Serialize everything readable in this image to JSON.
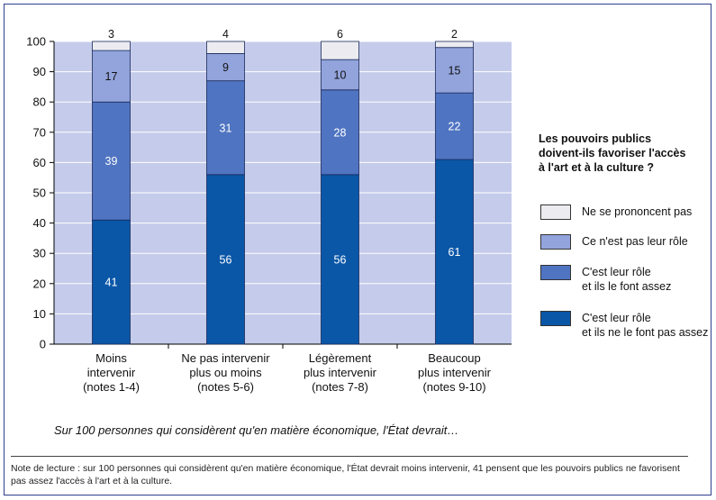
{
  "chart_data": {
    "type": "bar",
    "stacked": true,
    "categories": [
      "Moins\nintervenir\n(notes 1-4)",
      "Ne pas intervenir\nplus ou moins\n(notes 5-6)",
      "Légèrement\nplus intervenir\n(notes 7-8)",
      "Beaucoup\nplus intervenir\n(notes 9-10)"
    ],
    "series": [
      {
        "name": "C'est leur rôle\net ils ne le font pas assez",
        "color": "#0a57a8",
        "values": [
          41,
          56,
          56,
          61
        ]
      },
      {
        "name": "C'est leur rôle\net ils le font assez",
        "color": "#4f74c1",
        "values": [
          39,
          31,
          28,
          22
        ]
      },
      {
        "name": "Ce n'est pas leur rôle",
        "color": "#93a4dc",
        "values": [
          17,
          9,
          10,
          15
        ]
      },
      {
        "name": "Ne se prononcent pas",
        "color": "#ececf0",
        "values": [
          3,
          4,
          6,
          2
        ]
      }
    ],
    "ylim": [
      0,
      100
    ],
    "yticks": [
      0,
      10,
      20,
      30,
      40,
      50,
      60,
      70,
      80,
      90,
      100
    ],
    "grid": true,
    "legend_title": "Les pouvoirs publics\ndoivent-ils favoriser l'accès\nà l'art et à la culture ?",
    "legend_position": "right",
    "caption": "Sur 100 personnes qui considèrent qu'en matière économique, l'État devrait…",
    "plot_background": "#c5cbea"
  },
  "note": "Note de lecture : sur 100 personnes qui considèrent qu'en matière économique, l'État devrait moins intervenir, 41 pensent que les pouvoirs publics ne favorisent pas assez l'accès à l'art et à la culture."
}
